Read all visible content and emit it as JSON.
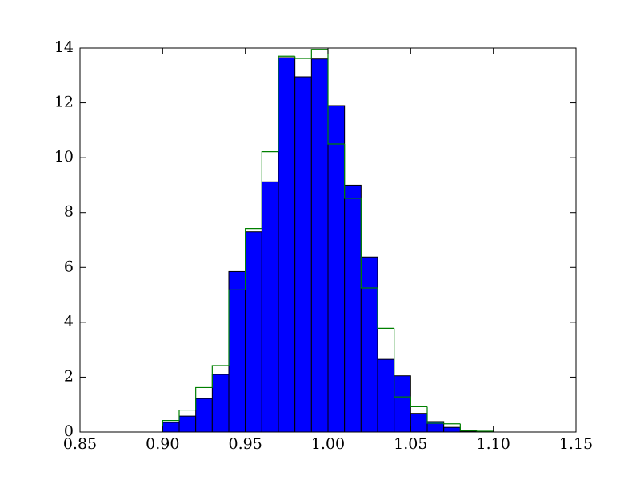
{
  "chart_data": {
    "type": "histogram",
    "bins": [
      0.9,
      0.91,
      0.92,
      0.93,
      0.94,
      0.95,
      0.96,
      0.97,
      0.98,
      0.99,
      1.0,
      1.01,
      1.02,
      1.03,
      1.04,
      1.05,
      1.06,
      1.07,
      1.08,
      1.09,
      1.1
    ],
    "series": [
      {
        "histtype": "bar",
        "color": "#0000ff",
        "edgecolor": "#000000",
        "values": [
          0.35,
          0.58,
          1.22,
          2.1,
          5.85,
          7.3,
          9.12,
          13.65,
          12.95,
          13.6,
          11.9,
          9.0,
          6.38,
          2.65,
          2.05,
          0.68,
          0.38,
          0.17,
          0.03,
          0.01
        ]
      },
      {
        "histtype": "step",
        "color": "#008000",
        "values": [
          0.42,
          0.8,
          1.62,
          2.42,
          5.18,
          7.42,
          10.22,
          13.7,
          13.62,
          13.95,
          10.5,
          8.52,
          5.25,
          3.78,
          1.28,
          0.92,
          0.32,
          0.3,
          0.05,
          0.03
        ]
      }
    ],
    "xlim": [
      0.85,
      1.15
    ],
    "xticks": [
      0.85,
      {
        "value": 0.9,
        "label": "0.90"
      },
      0.95,
      {
        "value": 1.0,
        "label": "1.00"
      },
      1.05,
      {
        "value": 1.1,
        "label": "1.10"
      },
      1.15
    ],
    "ylim": [
      0,
      14
    ],
    "yticks": [
      0,
      2,
      4,
      6,
      8,
      10,
      12,
      14
    ],
    "grid": false
  }
}
